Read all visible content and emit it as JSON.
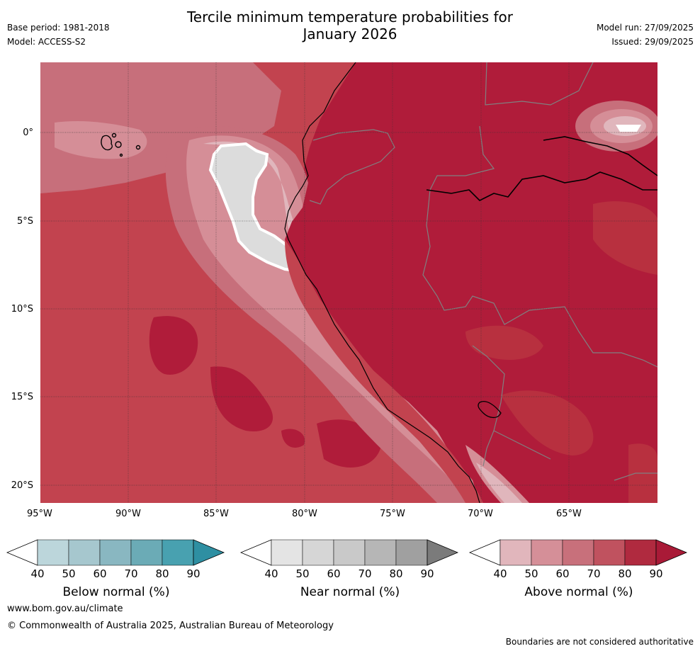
{
  "header": {
    "title_line1": "Tercile minimum temperature probabilities for",
    "title_line2": "January 2026",
    "base_period": "Base period: 1981-2018",
    "model": "Model: ACCESS-S2",
    "model_run": "Model run: 27/09/2025",
    "issued": "Issued: 29/09/2025"
  },
  "map": {
    "lat_labels": [
      "0°",
      "5°S",
      "10°S",
      "15°S",
      "20°S"
    ],
    "lon_labels": [
      "95°W",
      "90°W",
      "85°W",
      "80°W",
      "75°W",
      "70°W",
      "65°W"
    ],
    "colors": {
      "ocean_base": "#c2434f",
      "land_base": "#b01c3a",
      "above_50": "#e0b6bc",
      "above_60": "#d58e97",
      "above_70": "#c76f7b",
      "above_80": "#b8303f",
      "above_90": "#b01c3a",
      "near_40": "#dcdcdc"
    }
  },
  "colorbars": [
    {
      "title": "Below normal (%)",
      "ticks": [
        "40",
        "50",
        "60",
        "70",
        "80",
        "90"
      ],
      "colors": [
        "#bcd6db",
        "#a6c7ce",
        "#89b7c1",
        "#6babb6",
        "#48a1b0",
        "#2e8fa2"
      ]
    },
    {
      "title": "Near normal (%)",
      "ticks": [
        "40",
        "50",
        "60",
        "70",
        "80",
        "90"
      ],
      "colors": [
        "#e4e4e4",
        "#d6d6d6",
        "#c9c9c9",
        "#b6b6b6",
        "#a0a0a0",
        "#7b7b7b"
      ]
    },
    {
      "title": "Above normal (%)",
      "ticks": [
        "40",
        "50",
        "60",
        "70",
        "80",
        "90"
      ],
      "colors": [
        "#e1b6bc",
        "#d58f98",
        "#c8707b",
        "#c0525f",
        "#b02a3f",
        "#a91a37"
      ]
    }
  ],
  "footer": {
    "website": "www.bom.gov.au/climate",
    "copyright": "© Commonwealth of Australia 2025, Australian Bureau of Meteorology",
    "disclaimer": "Boundaries are not considered authoritative"
  }
}
